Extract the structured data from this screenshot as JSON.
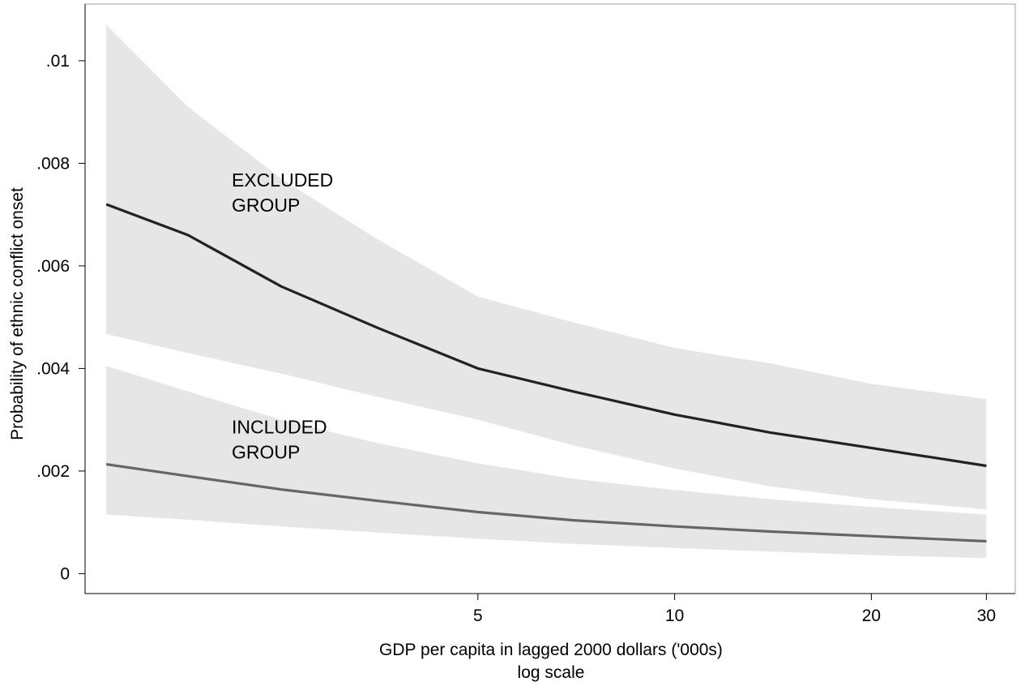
{
  "chart_data": {
    "type": "line",
    "xlabel": "GDP per capita in lagged 2000 dollars ('000s)",
    "xlabel_sub": "log scale",
    "ylabel": "Probability of ethnic conflict onset",
    "x_scale": "log",
    "xlim": [
      1.3,
      32
    ],
    "ylim": [
      -0.0002,
      0.0109
    ],
    "x_ticks": [
      5,
      10,
      20,
      30
    ],
    "x_tick_labels": [
      "5",
      "10",
      "20",
      "30"
    ],
    "y_ticks": [
      0,
      0.002,
      0.004,
      0.006,
      0.008,
      0.01
    ],
    "y_tick_labels": [
      "0",
      ".002",
      ".004",
      ".006",
      ".008",
      ".01"
    ],
    "grid": false,
    "legend": "none",
    "series": [
      {
        "name": "EXCLUDED GROUP",
        "label_lines": [
          "EXCLUDED",
          "GROUP"
        ],
        "color": "#222222",
        "x": [
          1.35,
          1.8,
          2.5,
          3.5,
          5,
          7,
          10,
          14,
          20,
          30
        ],
        "y": [
          0.0072,
          0.0066,
          0.0056,
          0.0048,
          0.004,
          0.00355,
          0.0031,
          0.00275,
          0.00245,
          0.0021
        ],
        "lower": [
          0.00467,
          0.0043,
          0.0039,
          0.00345,
          0.003,
          0.0025,
          0.00205,
          0.0017,
          0.00145,
          0.00125
        ],
        "upper": [
          0.0107,
          0.0091,
          0.0077,
          0.00653,
          0.0054,
          0.0049,
          0.0044,
          0.0041,
          0.0037,
          0.0034
        ]
      },
      {
        "name": "INCLUDED GROUP",
        "label_lines": [
          "INCLUDED",
          "GROUP"
        ],
        "color": "#666666",
        "x": [
          1.35,
          1.8,
          2.5,
          3.5,
          5,
          7,
          10,
          14,
          20,
          30
        ],
        "y": [
          0.00213,
          0.0019,
          0.00164,
          0.00142,
          0.0012,
          0.00104,
          0.00092,
          0.00082,
          0.00073,
          0.00063
        ],
        "lower": [
          0.00115,
          0.00105,
          0.00092,
          0.0008,
          0.00068,
          0.00058,
          0.0005,
          0.00043,
          0.00036,
          0.0003
        ],
        "upper": [
          0.00405,
          0.00355,
          0.003,
          0.00255,
          0.00215,
          0.00185,
          0.00163,
          0.00145,
          0.0013,
          0.00115
        ]
      }
    ]
  }
}
